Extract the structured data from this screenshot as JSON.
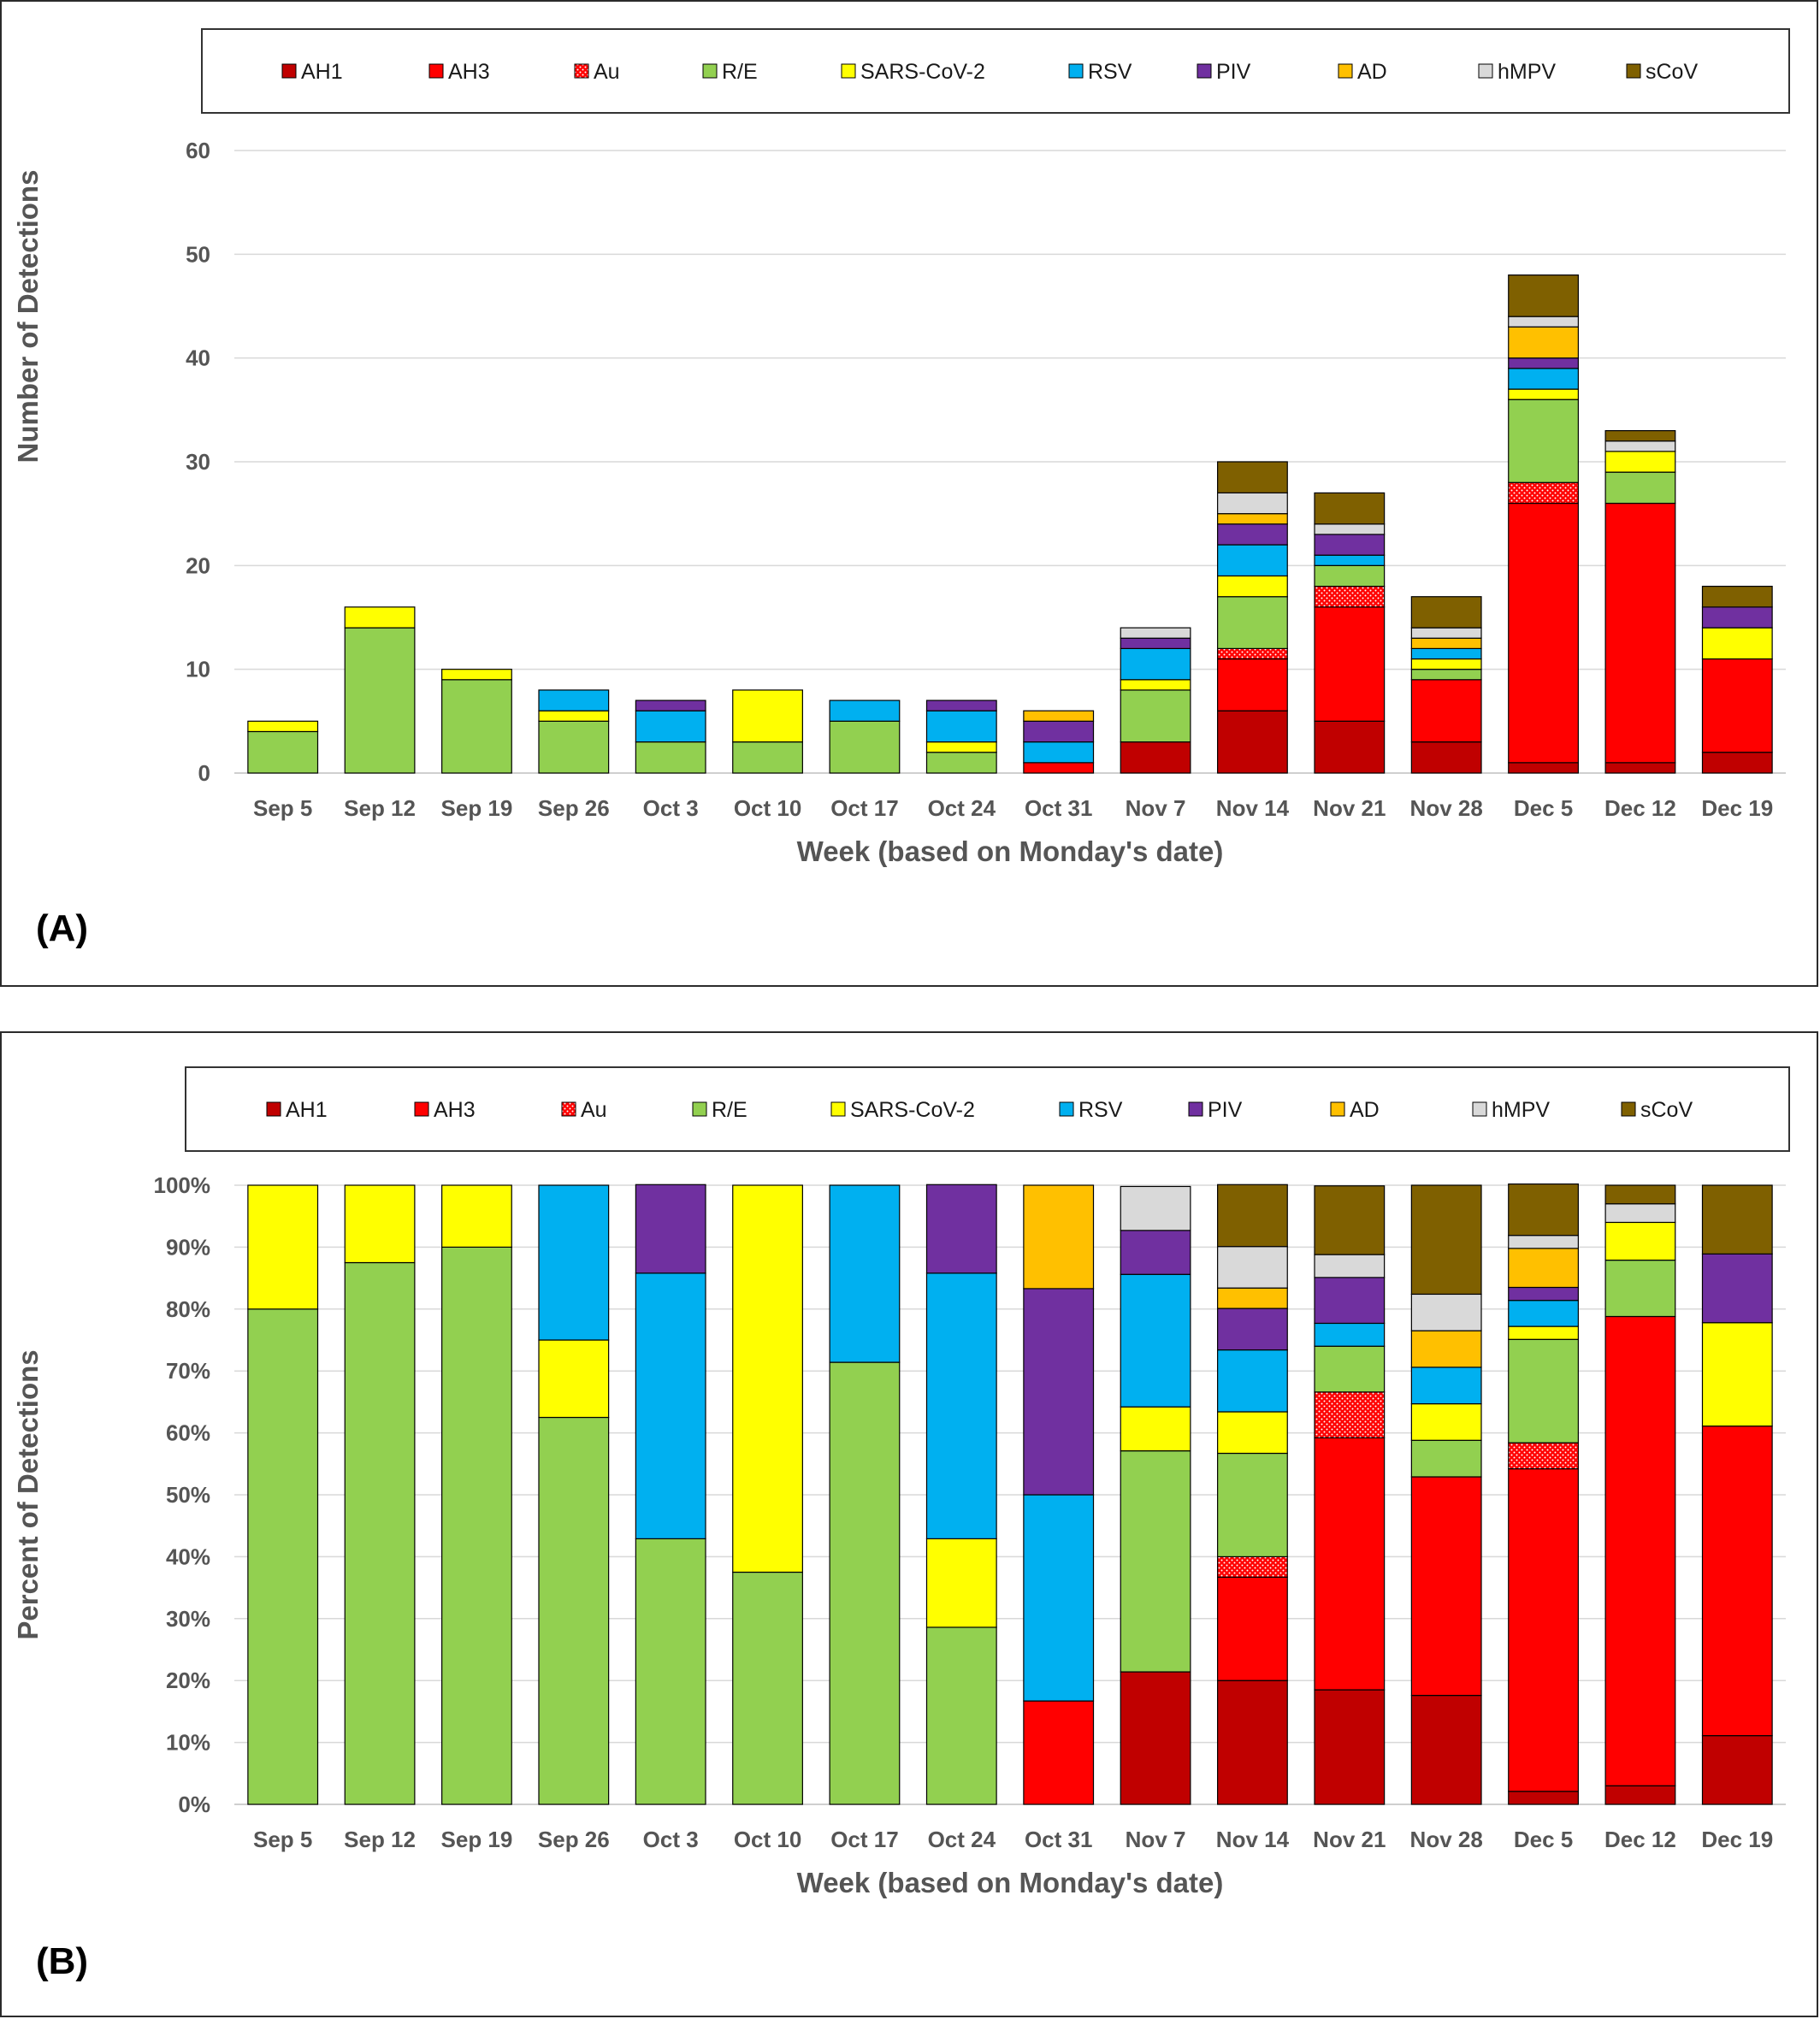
{
  "colors": {
    "AH1": "#c00000",
    "AH3": "#ff0000",
    "Au": "#ff0000",
    "R/E": "#92d050",
    "SARS-CoV-2": "#ffff00",
    "RSV": "#00b0f0",
    "PIV": "#7030a0",
    "AD": "#ffc000",
    "hMPV": "#d9d9d9",
    "sCoV": "#7f6000"
  },
  "chart_data": [
    {
      "type": "bar",
      "stacked": true,
      "panel_label": "(A)",
      "categories": [
        "Sep 5",
        "Sep 12",
        "Sep 19",
        "Sep 26",
        "Oct  3",
        "Oct 10",
        "Oct 17",
        "Oct 24",
        "Oct 31",
        "Nov 7",
        "Nov 14",
        "Nov 21",
        "Nov 28",
        "Dec 5",
        "Dec 12",
        "Dec 19"
      ],
      "xlabel": "Week (based on Monday's date)",
      "ylabel": "Number of Detections",
      "ylim": [
        0,
        60
      ],
      "yticks": [
        "0",
        "10",
        "20",
        "30",
        "40",
        "50",
        "60"
      ],
      "grid": true,
      "legend_position": "top",
      "series": [
        {
          "name": "AH1",
          "values": [
            0,
            0,
            0,
            0,
            0,
            0,
            0,
            0,
            0,
            3,
            6,
            5,
            3,
            1,
            1,
            2
          ]
        },
        {
          "name": "AH3",
          "values": [
            0,
            0,
            0,
            0,
            0,
            0,
            0,
            0,
            1,
            0,
            5,
            11,
            6,
            25,
            25,
            9
          ]
        },
        {
          "name": "Au",
          "values": [
            0,
            0,
            0,
            0,
            0,
            0,
            0,
            0,
            0,
            0,
            1,
            2,
            0,
            2,
            0,
            0
          ]
        },
        {
          "name": "R/E",
          "values": [
            4,
            14,
            9,
            5,
            3,
            3,
            5,
            2,
            0,
            5,
            5,
            2,
            1,
            8,
            3,
            0
          ]
        },
        {
          "name": "SARS-CoV-2",
          "values": [
            1,
            2,
            1,
            1,
            0,
            5,
            0,
            1,
            0,
            1,
            2,
            0,
            1,
            1,
            2,
            3
          ]
        },
        {
          "name": "RSV",
          "values": [
            0,
            0,
            0,
            2,
            3,
            0,
            2,
            3,
            2,
            3,
            3,
            1,
            1,
            2,
            0,
            0
          ]
        },
        {
          "name": "PIV",
          "values": [
            0,
            0,
            0,
            0,
            1,
            0,
            0,
            1,
            2,
            1,
            2,
            2,
            0,
            1,
            0,
            2
          ]
        },
        {
          "name": "AD",
          "values": [
            0,
            0,
            0,
            0,
            0,
            0,
            0,
            0,
            1,
            0,
            1,
            0,
            1,
            3,
            0,
            0
          ]
        },
        {
          "name": "hMPV",
          "values": [
            0,
            0,
            0,
            0,
            0,
            0,
            0,
            0,
            0,
            1,
            2,
            1,
            1,
            1,
            1,
            0
          ]
        },
        {
          "name": "sCoV",
          "values": [
            0,
            0,
            0,
            0,
            0,
            0,
            0,
            0,
            0,
            0,
            3,
            3,
            3,
            4,
            1,
            2
          ]
        }
      ]
    },
    {
      "type": "bar",
      "stacked": true,
      "normalized": true,
      "panel_label": "(B)",
      "categories": [
        "Sep 5",
        "Sep 12",
        "Sep 19",
        "Sep 26",
        "Oct  3",
        "Oct 10",
        "Oct 17",
        "Oct 24",
        "Oct 31",
        "Nov 7",
        "Nov 14",
        "Nov 21",
        "Nov 28",
        "Dec 5",
        "Dec 12",
        "Dec 19"
      ],
      "xlabel": "Week (based on Monday's date)",
      "ylabel": "Percent of Detections",
      "ylim": [
        0,
        100
      ],
      "yticks": [
        "0%",
        "10%",
        "20%",
        "30%",
        "40%",
        "50%",
        "60%",
        "70%",
        "80%",
        "90%",
        "100%"
      ],
      "grid": true,
      "legend_position": "top",
      "series": [
        {
          "name": "AH1",
          "values": [
            0,
            0,
            0,
            0,
            0,
            0,
            0,
            0,
            0,
            21.4,
            20,
            18.5,
            17.6,
            2.1,
            3,
            11.1
          ]
        },
        {
          "name": "AH3",
          "values": [
            0,
            0,
            0,
            0,
            0,
            0,
            0,
            0,
            16.7,
            0,
            16.7,
            40.7,
            35.3,
            52.1,
            75.8,
            50
          ]
        },
        {
          "name": "Au",
          "values": [
            0,
            0,
            0,
            0,
            0,
            0,
            0,
            0,
            0,
            0,
            3.3,
            7.4,
            0,
            4.2,
            0,
            0
          ]
        },
        {
          "name": "R/E",
          "values": [
            80,
            87.5,
            90,
            62.5,
            42.9,
            37.5,
            71.4,
            28.6,
            0,
            35.7,
            16.7,
            7.4,
            5.9,
            16.7,
            9.1,
            0
          ]
        },
        {
          "name": "SARS-CoV-2",
          "values": [
            20,
            12.5,
            10,
            12.5,
            0,
            62.5,
            0,
            14.3,
            0,
            7.1,
            6.7,
            0,
            5.9,
            2.1,
            6.1,
            16.7
          ]
        },
        {
          "name": "RSV",
          "values": [
            0,
            0,
            0,
            25,
            42.9,
            0,
            28.6,
            42.9,
            33.3,
            21.4,
            10,
            3.7,
            5.9,
            4.2,
            0,
            0
          ]
        },
        {
          "name": "PIV",
          "values": [
            0,
            0,
            0,
            0,
            14.3,
            0,
            0,
            14.3,
            33.3,
            7.1,
            6.7,
            7.4,
            0,
            2.1,
            0,
            11.1
          ]
        },
        {
          "name": "AD",
          "values": [
            0,
            0,
            0,
            0,
            0,
            0,
            0,
            0,
            16.7,
            0,
            3.3,
            0,
            5.9,
            6.3,
            0,
            0
          ]
        },
        {
          "name": "hMPV",
          "values": [
            0,
            0,
            0,
            0,
            0,
            0,
            0,
            0,
            0,
            7.1,
            6.7,
            3.7,
            5.9,
            2.1,
            3,
            0
          ]
        },
        {
          "name": "sCoV",
          "values": [
            0,
            0,
            0,
            0,
            0,
            0,
            0,
            0,
            0,
            0,
            10,
            11.1,
            17.6,
            8.3,
            3,
            11.1
          ]
        }
      ]
    }
  ]
}
